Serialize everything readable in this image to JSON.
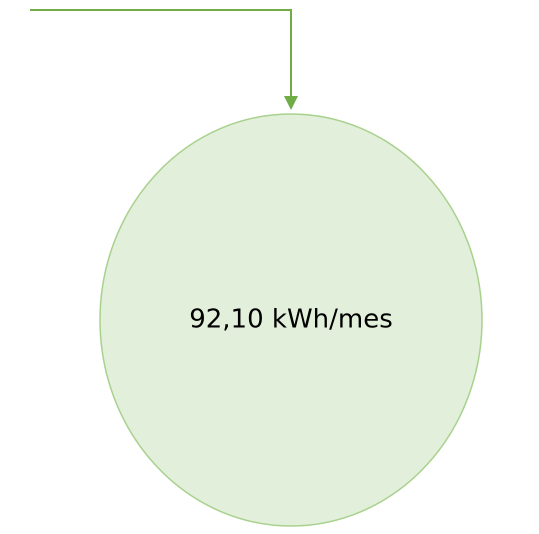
{
  "nodes": [
    {
      "label": "92,10 kWh/mes"
    }
  ]
}
